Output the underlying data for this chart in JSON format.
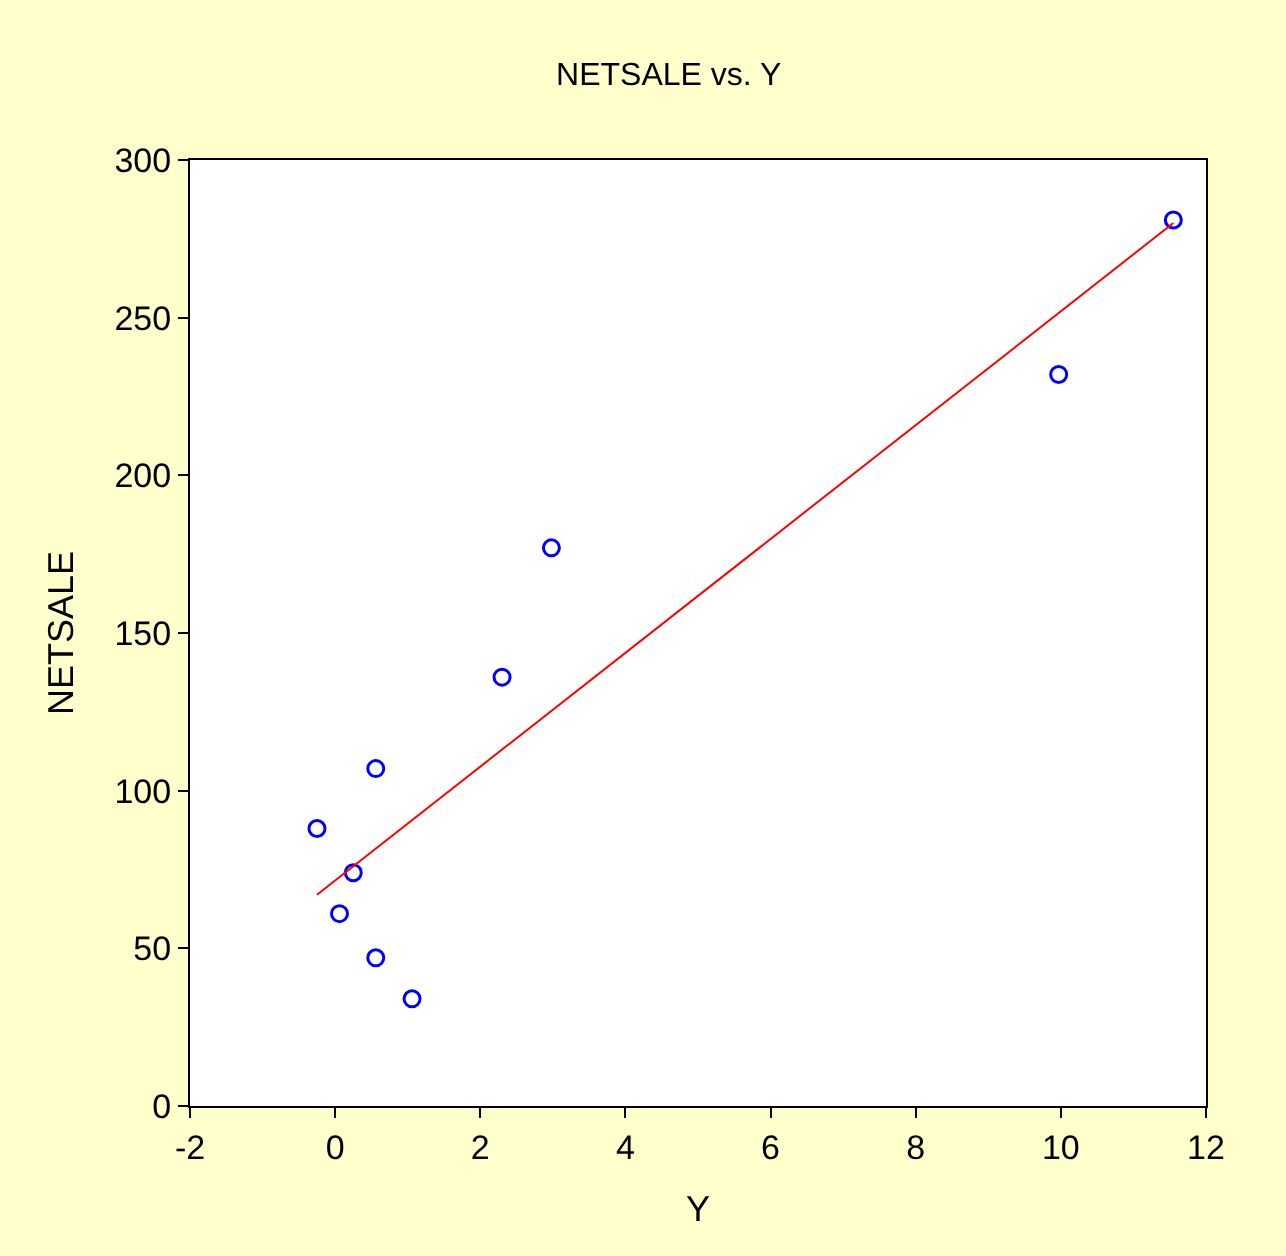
{
  "chart_data": {
    "type": "scatter",
    "title": "NETSALE vs. Y",
    "xlabel": "Y",
    "ylabel": "NETSALE",
    "xlim": [
      -2,
      12
    ],
    "xticks": [
      -2,
      0,
      2,
      4,
      6,
      8,
      10,
      12
    ],
    "ylim": [
      0,
      300
    ],
    "yticks": [
      0,
      50,
      100,
      150,
      200,
      250,
      300
    ],
    "series": [
      {
        "marker": "circle",
        "color": "#0000ff",
        "x": [
          -0.25,
          0.56,
          0.25,
          0.06,
          0.56,
          1.06,
          2.3,
          2.98,
          9.97,
          11.55
        ],
        "values": [
          88,
          107,
          74,
          61,
          47,
          34,
          136,
          177,
          232,
          281
        ]
      },
      {
        "type": "line",
        "marker": "none",
        "color": "#ff0000",
        "x": [
          -0.25,
          11.55
        ],
        "values": [
          67,
          280
        ]
      }
    ]
  }
}
